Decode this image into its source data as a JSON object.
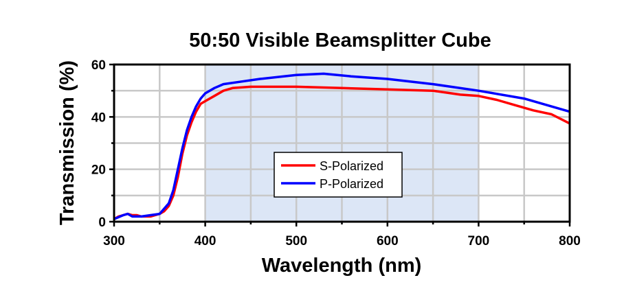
{
  "chart_data": {
    "type": "line",
    "title": "50:50 Visible Beamsplitter Cube",
    "xlabel": "Wavelength (nm)",
    "ylabel": "Transmission (%)",
    "xlim": [
      300,
      800
    ],
    "ylim": [
      0,
      60
    ],
    "xticks": [
      300,
      400,
      500,
      600,
      700,
      800
    ],
    "yticks": [
      0,
      20,
      40,
      60
    ],
    "grid": true,
    "shaded_region": {
      "x": [
        400,
        700
      ],
      "color": "#dce6f6"
    },
    "legend": {
      "placement": "center"
    },
    "series": [
      {
        "name": "S-Polarized",
        "color": "#ff0000",
        "x": [
          300,
          305,
          310,
          315,
          320,
          325,
          330,
          340,
          350,
          355,
          360,
          365,
          370,
          375,
          380,
          385,
          390,
          395,
          400,
          410,
          420,
          430,
          450,
          500,
          550,
          600,
          650,
          680,
          700,
          720,
          740,
          760,
          780,
          800
        ],
        "y": [
          1,
          2,
          2.5,
          3,
          2.5,
          2.5,
          2,
          2,
          3,
          4,
          6,
          10,
          17,
          26,
          33,
          38,
          42,
          45,
          46,
          48,
          50,
          51,
          51.5,
          51.5,
          51,
          50.5,
          50,
          48.5,
          48,
          46.5,
          44.5,
          42.5,
          41,
          37.5
        ]
      },
      {
        "name": "P-Polarized",
        "color": "#0000ff",
        "x": [
          300,
          310,
          315,
          320,
          330,
          340,
          350,
          360,
          365,
          370,
          375,
          380,
          385,
          390,
          395,
          400,
          410,
          420,
          440,
          460,
          500,
          530,
          560,
          600,
          650,
          700,
          750,
          800
        ],
        "y": [
          1,
          2.5,
          3,
          2,
          2,
          2.5,
          3,
          7,
          12,
          20,
          28,
          35,
          40,
          44,
          47,
          49,
          51,
          52.5,
          53.5,
          54.5,
          56,
          56.5,
          55.5,
          54.5,
          52.5,
          50,
          47,
          42
        ]
      }
    ]
  }
}
